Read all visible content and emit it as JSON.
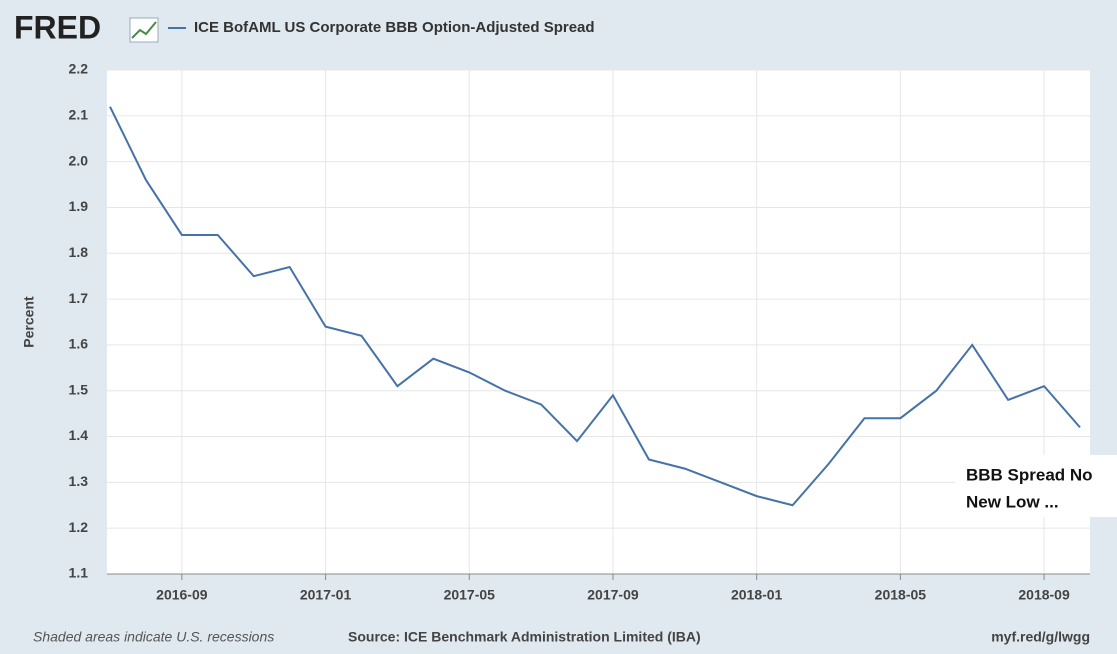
{
  "chart_data": {
    "type": "line",
    "logo": "FRED",
    "y_label": "Percent",
    "x": [
      "2016-07",
      "2016-08",
      "2016-09",
      "2016-10",
      "2016-11",
      "2016-12",
      "2017-01",
      "2017-02",
      "2017-03",
      "2017-04",
      "2017-05",
      "2017-06",
      "2017-07",
      "2017-08",
      "2017-09",
      "2017-10",
      "2017-11",
      "2017-12",
      "2018-01",
      "2018-02",
      "2018-03",
      "2018-04",
      "2018-05",
      "2018-06",
      "2018-07",
      "2018-08",
      "2018-09",
      "2018-10"
    ],
    "series": [
      {
        "name": "ICE BofAML US Corporate BBB Option-Adjusted Spread",
        "color": "#4572a7",
        "values": [
          2.12,
          1.96,
          1.84,
          1.84,
          1.75,
          1.77,
          1.64,
          1.62,
          1.51,
          1.57,
          1.54,
          1.5,
          1.47,
          1.39,
          1.49,
          1.35,
          1.33,
          1.3,
          1.27,
          1.25,
          1.34,
          1.44,
          1.44,
          1.5,
          1.6,
          1.48,
          1.51,
          1.42
        ]
      }
    ],
    "xlim": [
      "2016-07",
      "2018-10"
    ],
    "xticks": [
      "2016-09",
      "2017-01",
      "2017-05",
      "2017-09",
      "2018-01",
      "2018-05",
      "2018-09"
    ],
    "ylim": [
      1.1,
      2.2
    ],
    "yticks": [
      1.1,
      1.2,
      1.3,
      1.4,
      1.5,
      1.6,
      1.7,
      1.8,
      1.9,
      {
        "value": 2.0,
        "label": "2.0"
      },
      2.1,
      2.2
    ],
    "grid": true,
    "annotation": [
      "BBB Spread No",
      "New Low ..."
    ],
    "footnote": "Shaded areas indicate U.S. recessions",
    "source": "Source: ICE Benchmark Administration Limited (IBA)",
    "url": "myf.red/g/lwgg"
  }
}
